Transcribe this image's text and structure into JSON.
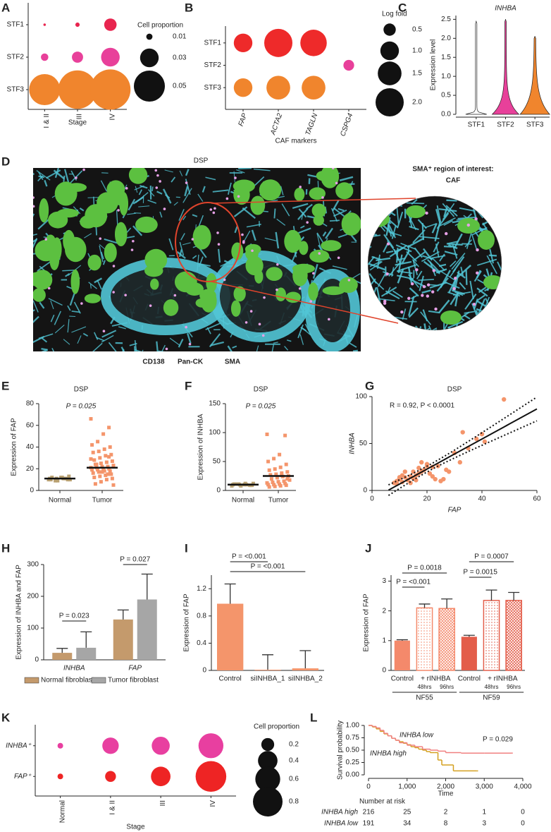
{
  "chart_data": [
    {
      "panel": "A",
      "type": "dot",
      "categories": [
        "I & II",
        "III",
        "IV"
      ],
      "xlabel": "Stage",
      "series": [
        {
          "name": "STF1",
          "color": "#e8254f",
          "values": [
            0.004,
            0.007,
            0.02
          ]
        },
        {
          "name": "STF2",
          "color": "#e8409a",
          "values": [
            0.012,
            0.018,
            0.03
          ]
        },
        {
          "name": "STF3",
          "color": "#f0852d",
          "values": [
            0.05,
            0.062,
            0.065
          ]
        }
      ],
      "size_title": "Cell proportion",
      "size_legend": [
        0.01,
        0.03,
        0.05
      ]
    },
    {
      "panel": "B",
      "type": "dot",
      "categories": [
        "FAP",
        "ACTA2",
        "TAGLN",
        "CSPG4"
      ],
      "xlabel": "CAF markers",
      "series": [
        {
          "name": "STF1",
          "color": "#ee2a2a",
          "values": [
            1.0,
            2.0,
            1.8,
            null
          ]
        },
        {
          "name": "STF2",
          "color": "#e8409a",
          "values": [
            null,
            null,
            null,
            0.4
          ]
        },
        {
          "name": "STF3",
          "color": "#f0852d",
          "values": [
            1.0,
            1.5,
            1.5,
            null
          ]
        }
      ],
      "size_title": "Log fold",
      "size_legend": [
        0.5,
        {
          "value": 1,
          "label": "1.0"
        },
        1.5,
        {
          "value": 2,
          "label": "2.0"
        }
      ]
    },
    {
      "panel": "C",
      "type": "violin",
      "title": "INHBA",
      "ylabel": "Expression level",
      "categories": [
        "STF1",
        "STF2",
        "STF3"
      ],
      "values": [
        2.45,
        2.5,
        2.05
      ],
      "colors": [
        "#ffffff",
        "#e8409a",
        "#f0852d"
      ],
      "ylim": [
        0,
        2.6
      ],
      "yticks": [
        {
          "value": 0,
          "label": "0.0"
        },
        0.5,
        {
          "value": 1,
          "label": "1.0"
        },
        1.5,
        {
          "value": 2,
          "label": "2.0"
        },
        2.5
      ]
    },
    {
      "panel": "D",
      "type": "image",
      "title": "DSP",
      "inset_title": "SMA⁺ region of interest:",
      "inset_label": "CAF",
      "stains": [
        {
          "name": "CD138",
          "color": "#d070d0"
        },
        {
          "name": "Pan-CK",
          "color": "#5cc040"
        },
        {
          "name": "SMA",
          "color": "#52c6d6"
        }
      ]
    },
    {
      "panel": "E",
      "type": "strip",
      "title": "DSP",
      "annotation": "P = 0.025",
      "ylabel": "Expression of FAP",
      "ylim": [
        0,
        80
      ],
      "yticks": [
        0,
        20,
        40,
        60,
        80
      ],
      "series": [
        {
          "name": "Normal",
          "color": "#b8a070",
          "values": [
            10,
            11,
            12,
            9,
            11,
            10,
            12,
            11,
            10,
            13,
            11,
            9,
            12,
            10,
            11
          ]
        },
        {
          "name": "Tumor",
          "color": "#f4956b",
          "values": [
            66,
            58,
            52,
            45,
            42,
            40,
            38,
            36,
            35,
            33,
            32,
            30,
            28,
            27,
            26,
            25,
            24,
            23,
            22,
            22,
            21,
            21,
            20,
            20,
            19,
            19,
            18,
            18,
            17,
            16,
            15,
            14,
            13,
            12,
            11,
            10,
            8,
            6,
            5,
            15,
            17,
            24,
            29,
            31
          ]
        }
      ],
      "medians": [
        11,
        21
      ]
    },
    {
      "panel": "F",
      "type": "strip",
      "title": "DSP",
      "annotation": "P = 0.025",
      "ylabel": "Expression of INHBA",
      "ylim": [
        0,
        150
      ],
      "yticks": [
        0,
        50,
        100,
        150
      ],
      "series": [
        {
          "name": "Normal",
          "color": "#b8a070",
          "values": [
            8,
            9,
            10,
            11,
            10,
            9,
            12,
            10,
            11,
            9,
            10,
            8,
            11,
            12
          ]
        },
        {
          "name": "Tumor",
          "color": "#f4956b",
          "values": [
            97,
            95,
            62,
            55,
            50,
            45,
            40,
            37,
            35,
            32,
            30,
            28,
            27,
            25,
            24,
            22,
            20,
            18,
            16,
            15,
            14,
            13,
            12,
            11,
            10,
            10,
            9,
            8,
            7,
            6,
            20,
            26
          ]
        }
      ],
      "medians": [
        10,
        25
      ]
    },
    {
      "panel": "G",
      "type": "scatter",
      "title": "DSP",
      "annotation": "R = 0.92, P < 0.0001",
      "xlabel": "FAP",
      "ylabel": "INHBA",
      "color": "#f4956b",
      "x": [
        8,
        9,
        10,
        11,
        12,
        13,
        14,
        15,
        16,
        17,
        18,
        19,
        20,
        21,
        22,
        23,
        24,
        25,
        27,
        30,
        32,
        33,
        35,
        38,
        40,
        41,
        48,
        12,
        14,
        16,
        18,
        20,
        10,
        9,
        11,
        15,
        26,
        28,
        22,
        17
      ],
      "y": [
        8,
        10,
        12,
        9,
        14,
        11,
        15,
        13,
        16,
        18,
        20,
        22,
        28,
        18,
        25,
        12,
        26,
        10,
        22,
        40,
        30,
        62,
        45,
        55,
        60,
        52,
        97,
        20,
        8,
        11,
        30,
        26,
        14,
        7,
        16,
        20,
        12,
        20,
        15,
        24
      ],
      "xlim": [
        0,
        60
      ],
      "ylim": [
        0,
        100
      ],
      "xticks": [
        0,
        20,
        40,
        60
      ],
      "yticks": [
        0,
        50,
        100
      ],
      "fit": true
    },
    {
      "panel": "H",
      "type": "bar",
      "ylabel": "Expression of INHBA and FAP",
      "categories": [
        "INHBA",
        "FAP"
      ],
      "series": [
        {
          "name": "Normal fibroblast",
          "color": "#c49a6c",
          "values": [
            22,
            127
          ],
          "errors": [
            14,
            30
          ]
        },
        {
          "name": "Tumor fibroblast",
          "color": "#a6a6a6",
          "values": [
            38,
            190
          ],
          "errors": [
            50,
            80
          ]
        }
      ],
      "ylim": [
        0,
        300
      ],
      "yticks": [
        0,
        100,
        200,
        300
      ],
      "annotations": [
        "P = 0.023",
        "P = 0.027"
      ]
    },
    {
      "panel": "I",
      "type": "bar",
      "ylabel": "Expression of FAP",
      "categories": [
        "Control",
        "siINHBA_1",
        "siINHBA_2"
      ],
      "series": [
        {
          "color": "#f4956b",
          "values": [
            0.98,
            0.01,
            0.03
          ],
          "errors": [
            0.29,
            0.22,
            0.26
          ]
        }
      ],
      "ylim": [
        0,
        1.4
      ],
      "yticks": [
        0,
        0.4,
        0.8,
        1.2
      ],
      "annotations": [
        "P = <0.001",
        "P = <0.001"
      ]
    },
    {
      "panel": "J",
      "type": "bar",
      "ylabel": "Expression of FAP",
      "categories": [
        "Control",
        "48hrs",
        "96hrs",
        "Control",
        "48hrs",
        "96hrs"
      ],
      "groups": [
        "NF55",
        "NF59"
      ],
      "treatment": "+ rINHBA",
      "series": [
        {
          "colors": [
            "#f4896b",
            "#f4896b",
            "#f4896b",
            "#e35d4a",
            "#e35d4a",
            "#e35d4a"
          ],
          "styles": [
            "solid",
            "dotted",
            "hatched",
            "solid",
            "dotted",
            "hatched"
          ],
          "values": [
            1.0,
            2.1,
            2.08,
            1.13,
            2.35,
            2.35
          ],
          "errors": [
            0.03,
            0.13,
            0.32,
            0.05,
            0.35,
            0.27
          ]
        }
      ],
      "ylim": [
        0,
        3.2
      ],
      "yticks": [
        0,
        1,
        2,
        3
      ],
      "annotations": [
        "P = <0.001",
        "P = 0.0018",
        "P = 0.0015",
        "P = 0.0007"
      ]
    },
    {
      "panel": "K",
      "type": "dot",
      "categories": [
        "Normal",
        "I & II",
        "III",
        "IV"
      ],
      "xlabel": "Stage",
      "series": [
        {
          "name": "INHBA⁺",
          "color": "#e83fa0",
          "values": [
            0.05,
            0.3,
            0.35,
            0.6
          ]
        },
        {
          "name": "FAP⁺",
          "color": "#ee2424",
          "values": [
            0.05,
            0.15,
            0.4,
            0.85
          ]
        }
      ],
      "size_title": "Cell proportion",
      "size_legend": [
        0.2,
        0.4,
        0.6,
        0.8
      ]
    },
    {
      "panel": "L",
      "type": "km",
      "ylabel": "Survival probability",
      "xlabel": "Time",
      "annotation": "P = 0.029",
      "risk_title": "Number at risk",
      "xlim": [
        0,
        4000
      ],
      "xticks": [
        0,
        {
          "value": 1000,
          "label": "1,000"
        },
        {
          "value": 2000,
          "label": "2,000"
        },
        {
          "value": 3000,
          "label": "3,000"
        },
        {
          "value": 4000,
          "label": "4,000"
        }
      ],
      "ylim": [
        0,
        1
      ],
      "yticks": [
        {
          "value": 0,
          "label": "0.00"
        },
        0.25,
        {
          "value": 0.5,
          "label": "0.50"
        },
        0.75,
        {
          "value": 1,
          "label": "1.00"
        }
      ],
      "series": [
        {
          "name": "INHBA high",
          "color": "#d4a020",
          "x": [
            0,
            100,
            200,
            300,
            400,
            500,
            600,
            700,
            800,
            900,
            1000,
            1100,
            1200,
            1300,
            1400,
            1500,
            1600,
            1700,
            1800,
            1900,
            2000,
            2200,
            2800
          ],
          "values": [
            1,
            0.97,
            0.93,
            0.88,
            0.83,
            0.79,
            0.74,
            0.7,
            0.67,
            0.64,
            0.61,
            0.57,
            0.55,
            0.52,
            0.5,
            0.47,
            0.45,
            0.45,
            0.3,
            0.2,
            0.2,
            0.08,
            0.08
          ],
          "at_risk": [
            216,
            25,
            2,
            1,
            0
          ]
        },
        {
          "name": "INHBA low",
          "color": "#f08080",
          "x": [
            0,
            100,
            200,
            300,
            400,
            500,
            600,
            700,
            800,
            1000,
            1200,
            1400,
            1600,
            1800,
            2000,
            2400,
            3000,
            3700
          ],
          "values": [
            1,
            0.98,
            0.95,
            0.9,
            0.84,
            0.79,
            0.74,
            0.7,
            0.65,
            0.6,
            0.57,
            0.52,
            0.5,
            0.48,
            0.45,
            0.44,
            0.44,
            0.44
          ],
          "at_risk": [
            191,
            34,
            8,
            3,
            0
          ]
        }
      ]
    }
  ]
}
